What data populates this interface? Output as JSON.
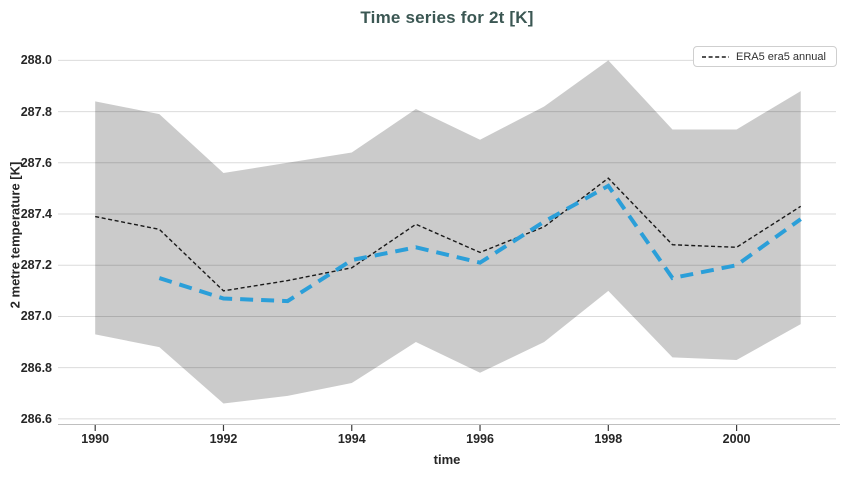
{
  "title": "Time series for 2t [K]",
  "legend": {
    "position": "top-right",
    "items": [
      {
        "label": "ERA5 era5 annual",
        "marker": "black-dashed-line"
      }
    ]
  },
  "chart_data": {
    "type": "line",
    "title": "Time series for 2t [K]",
    "xlabel": "time",
    "ylabel": "2 metre temperature [K]",
    "xlim": [
      1989.42,
      2001.55
    ],
    "ylim": [
      286.58,
      288.06
    ],
    "grid": "horizontal",
    "legend_position": "top-right",
    "x_ticks": [
      {
        "value": 1990,
        "label": "1990"
      },
      {
        "value": 1992,
        "label": "1992"
      },
      {
        "value": 1994,
        "label": "1994"
      },
      {
        "value": 1996,
        "label": "1996"
      },
      {
        "value": 1998,
        "label": "1998"
      },
      {
        "value": 2000,
        "label": "2000"
      }
    ],
    "y_ticks": [
      {
        "value": 288.0,
        "label": "288.0"
      },
      {
        "value": 287.8,
        "label": "287.8"
      },
      {
        "value": 287.6,
        "label": "287.6"
      },
      {
        "value": 287.4,
        "label": "287.4"
      },
      {
        "value": 287.2,
        "label": "287.2"
      },
      {
        "value": 287.0,
        "label": "287.0"
      },
      {
        "value": 286.8,
        "label": "286.8"
      },
      {
        "value": 286.6,
        "label": "286.6"
      }
    ],
    "band": {
      "id": "gray-band",
      "x": [
        1990,
        1991,
        1992,
        1993,
        1994,
        1995,
        1996,
        1997,
        1998,
        1999,
        2000,
        2001
      ],
      "upper": [
        287.84,
        287.79,
        287.56,
        287.6,
        287.64,
        287.81,
        287.69,
        287.82,
        288.0,
        287.73,
        287.73,
        287.88
      ],
      "lower": [
        286.93,
        286.88,
        286.66,
        286.69,
        286.74,
        286.9,
        286.78,
        286.9,
        287.1,
        286.84,
        286.83,
        286.97
      ],
      "color": "#cbcbcb"
    },
    "series": [
      {
        "id": "era5-annual",
        "name": "ERA5 era5 annual",
        "color": "#1a1a1a",
        "dash": "4 2.6",
        "width": 1.4,
        "x": [
          1990,
          1991,
          1992,
          1993,
          1994,
          1995,
          1996,
          1997,
          1998,
          1999,
          2000,
          2001
        ],
        "values": [
          287.39,
          287.34,
          287.1,
          287.14,
          287.19,
          287.36,
          287.25,
          287.35,
          287.54,
          287.28,
          287.27,
          287.43
        ]
      },
      {
        "id": "blue-dashed",
        "name": "",
        "color": "#2b9fd9",
        "dash": "13 8",
        "width": 4,
        "x": [
          1991,
          1992,
          1993,
          1994,
          1995,
          1996,
          1997,
          1998,
          1999,
          2000,
          2001
        ],
        "values": [
          287.15,
          287.07,
          287.06,
          287.22,
          287.27,
          287.21,
          287.37,
          287.51,
          287.15,
          287.2,
          287.38
        ]
      }
    ],
    "colors": {
      "grid": "rgba(0,0,0,0.14)",
      "axis_line": "#bfbfbf",
      "tick": "#3b3b3b",
      "tick_label": "#262626",
      "title": "#3b5753"
    }
  }
}
